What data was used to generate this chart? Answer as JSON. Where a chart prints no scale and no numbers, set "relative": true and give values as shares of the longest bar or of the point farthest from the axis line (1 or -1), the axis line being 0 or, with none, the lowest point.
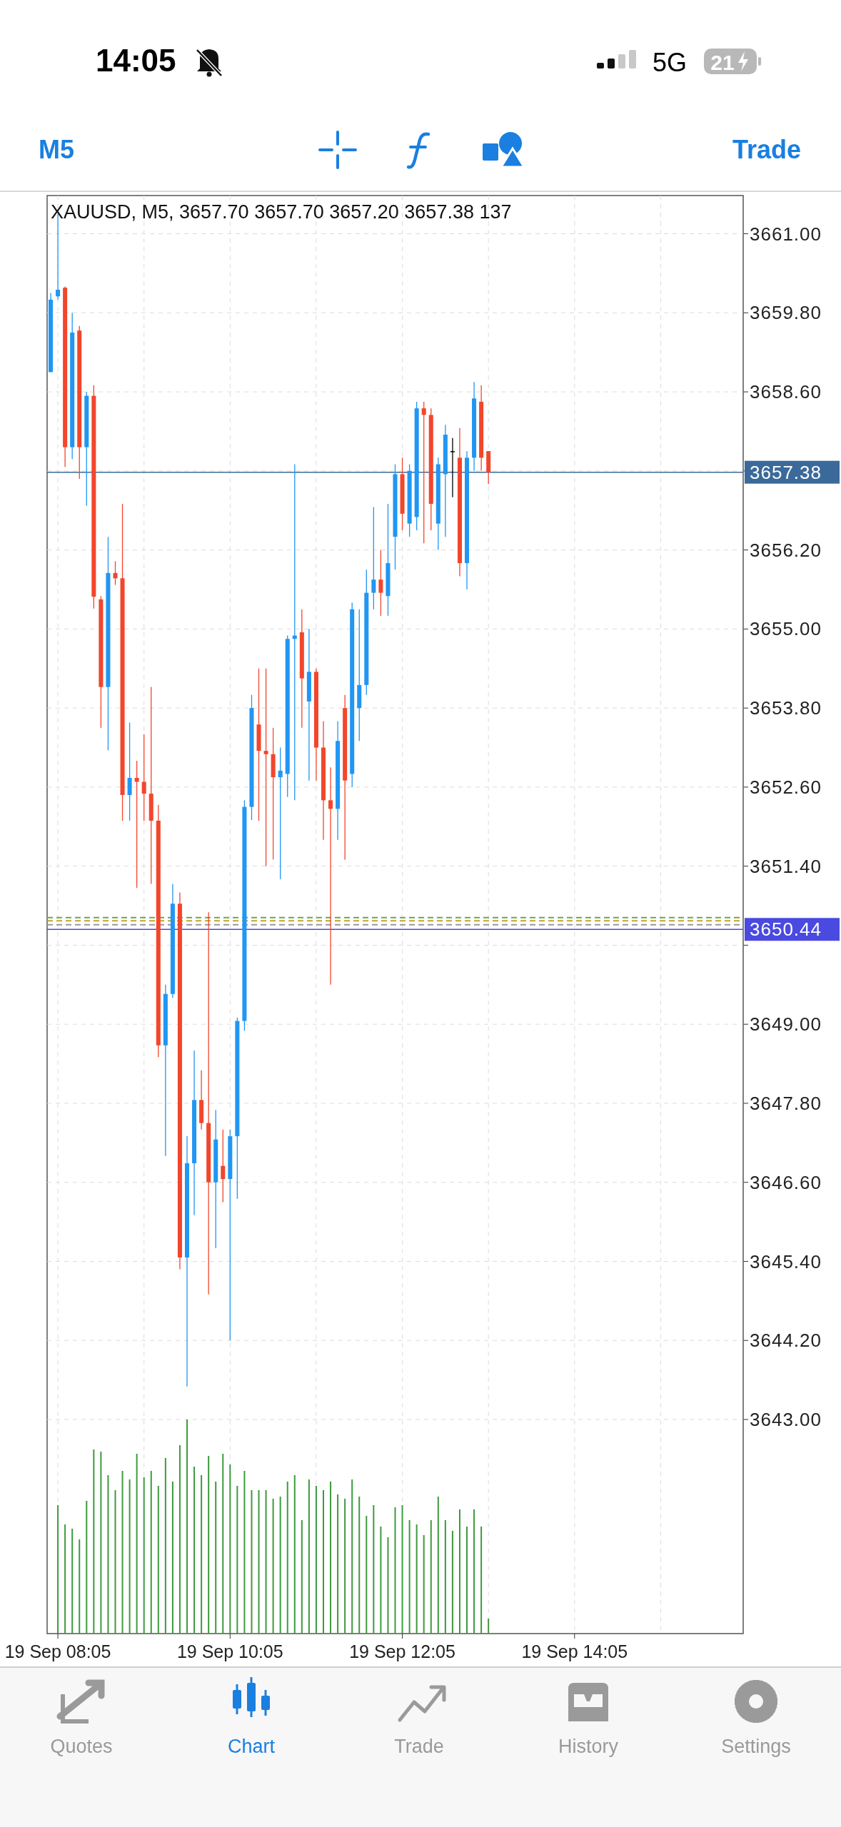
{
  "chart_data": [
    {
      "type": "candlestick",
      "title": "XAUUSD, M5, 3657.70 3657.70 3657.20 3657.38 137",
      "categories": [
        null,
        null,
        null,
        null,
        null,
        null,
        null,
        null,
        null,
        null,
        null,
        null,
        null,
        null,
        null,
        null,
        null,
        null,
        null,
        null,
        null,
        null,
        null,
        null,
        null,
        null,
        null,
        null,
        null,
        null,
        null,
        null,
        null,
        null,
        null,
        null,
        null,
        null,
        null,
        null,
        null,
        null,
        null,
        null,
        null,
        null,
        null,
        null,
        null,
        null,
        null,
        null,
        null,
        null,
        null,
        null,
        null,
        null,
        null,
        null,
        null,
        null,
        null,
        null,
        null,
        null,
        null,
        null,
        null,
        null,
        null,
        null,
        null,
        null,
        null,
        null,
        null,
        null,
        null,
        null,
        null,
        null,
        null,
        null,
        null,
        null,
        null,
        null,
        null,
        null,
        null,
        null,
        null,
        null,
        null,
        null,
        null
      ],
      "ohlc": [
        [
          3658.9,
          3660.1,
          3658.9,
          3660.0
        ],
        [
          3660.05,
          3661.3,
          3660.0,
          3660.15
        ],
        [
          3660.18,
          3660.2,
          3657.46,
          3657.76
        ],
        [
          3657.76,
          3659.8,
          3657.58,
          3659.5
        ],
        [
          3659.53,
          3659.6,
          3657.28,
          3657.76
        ],
        [
          3657.76,
          3658.6,
          3656.87,
          3658.54
        ],
        [
          3658.54,
          3658.7,
          3655.31,
          3655.49
        ],
        [
          3655.45,
          3655.5,
          3653.5,
          3654.12
        ],
        [
          3654.12,
          3656.4,
          3653.16,
          3655.85
        ],
        [
          3655.85,
          3656.03,
          3655.67,
          3655.77
        ],
        [
          3655.77,
          3656.9,
          3652.09,
          3652.48
        ],
        [
          3652.48,
          3653.58,
          3652.09,
          3652.74
        ],
        [
          3652.74,
          3653.0,
          3651.07,
          3652.68
        ],
        [
          3652.68,
          3653.4,
          3652.09,
          3652.5
        ],
        [
          3652.5,
          3654.12,
          3651.13,
          3652.09
        ],
        [
          3652.09,
          3652.33,
          3648.5,
          3648.68
        ],
        [
          3648.68,
          3649.6,
          3647.0,
          3649.46
        ],
        [
          3649.46,
          3651.13,
          3649.4,
          3650.83
        ],
        [
          3650.83,
          3651.0,
          3645.28,
          3645.46
        ],
        [
          3645.46,
          3647.3,
          3643.5,
          3646.89
        ],
        [
          3646.89,
          3648.6,
          3646.1,
          3647.85
        ],
        [
          3647.85,
          3648.3,
          3647.4,
          3647.5
        ],
        [
          3647.5,
          3650.7,
          3644.9,
          3646.6
        ],
        [
          3646.6,
          3647.7,
          3645.6,
          3647.25
        ],
        [
          3646.85,
          3647.4,
          3646.3,
          3646.65
        ],
        [
          3646.65,
          3647.4,
          3644.2,
          3647.3
        ],
        [
          3647.3,
          3649.1,
          3646.35,
          3649.05
        ],
        [
          3649.05,
          3652.4,
          3648.9,
          3652.3
        ],
        [
          3652.3,
          3654.0,
          3652.1,
          3653.8
        ],
        [
          3653.55,
          3654.4,
          3652.09,
          3653.15
        ],
        [
          3653.15,
          3654.4,
          3651.4,
          3653.1
        ],
        [
          3653.1,
          3653.5,
          3651.5,
          3652.75
        ],
        [
          3652.75,
          3653.2,
          3651.2,
          3652.85
        ],
        [
          3652.8,
          3654.9,
          3652.45,
          3654.85
        ],
        [
          3654.85,
          3657.5,
          3652.4,
          3654.9
        ],
        [
          3654.95,
          3655.3,
          3653.5,
          3654.25
        ],
        [
          3653.9,
          3655.0,
          3652.7,
          3654.35
        ],
        [
          3654.35,
          3654.4,
          3652.7,
          3653.2
        ],
        [
          3653.2,
          3653.6,
          3651.8,
          3652.4
        ],
        [
          3652.4,
          3652.9,
          3649.6,
          3652.27
        ],
        [
          3652.27,
          3653.6,
          3651.8,
          3653.3
        ],
        [
          3653.8,
          3654.0,
          3651.5,
          3652.7
        ],
        [
          3652.8,
          3655.4,
          3652.6,
          3655.3
        ],
        [
          3653.8,
          3655.3,
          3653.3,
          3654.15
        ],
        [
          3654.15,
          3655.9,
          3654.0,
          3655.55
        ],
        [
          3655.55,
          3656.85,
          3655.3,
          3655.75
        ],
        [
          3655.75,
          3656.2,
          3655.2,
          3655.55
        ],
        [
          3655.5,
          3656.9,
          3655.2,
          3656.0
        ],
        [
          3656.4,
          3657.5,
          3655.9,
          3657.35
        ],
        [
          3657.35,
          3657.6,
          3656.5,
          3656.75
        ],
        [
          3656.6,
          3657.5,
          3656.4,
          3657.4
        ],
        [
          3656.7,
          3658.45,
          3656.5,
          3658.35
        ],
        [
          3658.35,
          3658.45,
          3656.3,
          3658.25
        ],
        [
          3658.25,
          3658.35,
          3656.5,
          3656.9
        ],
        [
          3656.6,
          3657.6,
          3656.2,
          3657.5
        ],
        [
          3657.35,
          3658.1,
          3656.4,
          3657.95
        ],
        [
          3657.7,
          3657.9,
          3657.0,
          3657.7
        ],
        [
          3657.6,
          3658.05,
          3655.8,
          3656.0
        ],
        [
          3656.0,
          3657.7,
          3655.6,
          3657.6
        ],
        [
          3657.6,
          3658.75,
          3657.4,
          3658.5
        ],
        [
          3658.45,
          3658.7,
          3657.4,
          3657.6
        ],
        [
          3657.7,
          3657.7,
          3657.2,
          3657.38
        ],
        null,
        null,
        null,
        null,
        null,
        null,
        null,
        null,
        null,
        null,
        null,
        null,
        null,
        null,
        null,
        null,
        null,
        null,
        null,
        null,
        null,
        null,
        null,
        null,
        null,
        null,
        null,
        null,
        null,
        null,
        null,
        null,
        null,
        null,
        null
      ],
      "colors": [
        "#2196f3",
        "#2196f3",
        "#f2462c",
        "#2196f3",
        "#f2462c",
        "#2196f3",
        "#f2462c",
        "#f2462c",
        "#2196f3",
        "#f2462c",
        "#f2462c",
        "#2196f3",
        "#f2462c",
        "#f2462c",
        "#f2462c",
        "#f2462c",
        "#2196f3",
        "#2196f3",
        "#f2462c",
        "#2196f3",
        "#2196f3",
        "#f2462c",
        "#f2462c",
        "#2196f3",
        "#f2462c",
        "#2196f3",
        "#2196f3",
        "#2196f3",
        "#2196f3",
        "#f2462c",
        "#f2462c",
        "#f2462c",
        "#2196f3",
        "#2196f3",
        "#2196f3",
        "#f2462c",
        "#2196f3",
        "#f2462c",
        "#f2462c",
        "#f2462c",
        "#2196f3",
        "#f2462c",
        "#2196f3",
        "#2196f3",
        "#2196f3",
        "#2196f3",
        "#f2462c",
        "#2196f3",
        "#2196f3",
        "#f2462c",
        "#2196f3",
        "#2196f3",
        "#f2462c",
        "#f2462c",
        "#2196f3",
        "#2196f3",
        "#000000",
        "#f2462c",
        "#2196f3",
        "#2196f3",
        "#f2462c",
        "#f2462c",
        null,
        null,
        null,
        null,
        null,
        null,
        null,
        null,
        null,
        null,
        null,
        null,
        null,
        null,
        null,
        null,
        null,
        null,
        null,
        null,
        null,
        null,
        null,
        null,
        null,
        null,
        null,
        null,
        null,
        null,
        null,
        null,
        null,
        null,
        null
      ],
      "tick_labels": "y",
      "ylim": [
        3639.75,
        3661.58
      ],
      "yticks": [
        {
          "value": 3661,
          "label": "3661.00"
        },
        {
          "value": 3659.8,
          "label": "3659.80"
        },
        {
          "value": 3658.6,
          "label": "3658.60"
        },
        {
          "value": 3657.4,
          "label": null
        },
        {
          "value": 3656.2,
          "label": "3656.20"
        },
        {
          "value": 3655,
          "label": "3655.00"
        },
        {
          "value": 3653.8,
          "label": "3653.80"
        },
        {
          "value": 3652.6,
          "label": "3652.60"
        },
        {
          "value": 3651.4,
          "label": "3651.40"
        },
        {
          "value": 3650.2,
          "label": null
        },
        {
          "value": 3649,
          "label": "3649.00"
        },
        {
          "value": 3647.8,
          "label": "3647.80"
        },
        {
          "value": 3646.6,
          "label": "3646.60"
        },
        {
          "value": 3645.4,
          "label": "3645.40"
        },
        {
          "value": 3644.2,
          "label": "3644.20"
        },
        {
          "value": 3643,
          "label": "3643.00"
        }
      ],
      "grid": true,
      "ref_lines": [
        {
          "axis": "y",
          "value": 3657.38,
          "label": "3657.38",
          "color": "#3b6a9a"
        },
        {
          "axis": "y",
          "value": 3650.62,
          "color": "#6aa84f",
          "line_style": "dashed"
        },
        {
          "axis": "y",
          "value": 3650.57,
          "color": "#c9a227",
          "line_style": "dashed"
        },
        {
          "axis": "y",
          "value": 3650.51,
          "color": "#999999",
          "line_style": "dashed"
        },
        {
          "axis": "y",
          "value": 3650.44,
          "label": "3650.44",
          "color": "#4a4ae0"
        }
      ],
      "annotations": [
        "14:05",
        "5G",
        "21",
        "M5",
        "Trade",
        "Quotes",
        "Chart",
        "Trade",
        "History",
        "Settings"
      ]
    },
    {
      "type": "bar",
      "relative": true,
      "color": "#3d9a3d",
      "grid": "x",
      "categories": [
        null,
        "19 Sep 08:05",
        null,
        null,
        null,
        null,
        null,
        null,
        null,
        null,
        null,
        null,
        null,
        null,
        null,
        null,
        null,
        null,
        null,
        null,
        null,
        null,
        null,
        null,
        null,
        "19 Sep 10:05",
        null,
        null,
        null,
        null,
        null,
        null,
        null,
        null,
        null,
        null,
        null,
        null,
        null,
        null,
        null,
        null,
        null,
        null,
        null,
        null,
        null,
        null,
        null,
        "19 Sep 12:05",
        null,
        null,
        null,
        null,
        null,
        null,
        null,
        null,
        null,
        null,
        null,
        null,
        null,
        null,
        null,
        null,
        null,
        null,
        null,
        null,
        null,
        null,
        null,
        "19 Sep 14:05",
        null,
        null,
        null,
        null,
        null,
        null,
        null,
        null,
        null,
        null,
        null,
        null,
        null,
        null,
        null,
        null,
        null,
        null,
        null,
        null,
        null,
        null,
        null
      ],
      "values": [
        null,
        0.6,
        0.51,
        0.49,
        0.44,
        0.62,
        0.86,
        0.85,
        0.74,
        0.67,
        0.76,
        0.72,
        0.84,
        0.73,
        0.76,
        0.69,
        0.82,
        0.71,
        0.88,
        1,
        0.78,
        0.74,
        0.83,
        0.71,
        0.84,
        0.79,
        0.69,
        0.76,
        0.67,
        0.67,
        0.67,
        0.63,
        0.64,
        0.71,
        0.74,
        0.53,
        0.72,
        0.69,
        0.67,
        0.71,
        0.65,
        0.63,
        0.72,
        0.64,
        0.55,
        0.6,
        0.5,
        0.45,
        0.59,
        0.6,
        0.53,
        0.51,
        0.46,
        0.53,
        0.64,
        0.53,
        0.48,
        0.58,
        0.5,
        0.58,
        0.5,
        0.07,
        null,
        null,
        null,
        null,
        null,
        null,
        null,
        null,
        null,
        null,
        null,
        null,
        null,
        null,
        null,
        null,
        null,
        null,
        null,
        null,
        null,
        null,
        null,
        null,
        null,
        null,
        null,
        null,
        null,
        null,
        null,
        null,
        null,
        null,
        null
      ]
    }
  ]
}
